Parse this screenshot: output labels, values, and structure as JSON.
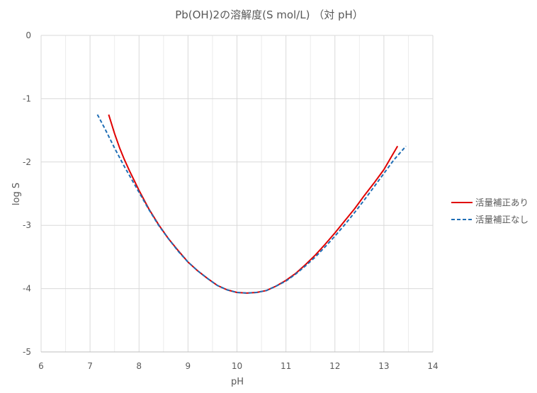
{
  "chart_data": {
    "type": "line",
    "title": "Pb(OH)2の溶解度(S mol/L) （対 pH）",
    "xlabel": "pH",
    "ylabel": "log S",
    "xlim": [
      6,
      14
    ],
    "ylim": [
      -5,
      0
    ],
    "xticks": [
      6,
      7,
      8,
      9,
      10,
      11,
      12,
      13,
      14
    ],
    "yticks": [
      0,
      -1,
      -2,
      -3,
      -4,
      -5
    ],
    "x_minor_step": 0.5,
    "grid": true,
    "legend": "right",
    "series": [
      {
        "name": "活量補正あり",
        "color": "#e00000",
        "dash": "solid",
        "x": [
          7.38,
          7.5,
          7.6,
          7.7,
          7.8,
          8.0,
          8.2,
          8.4,
          8.6,
          8.8,
          9.0,
          9.2,
          9.4,
          9.6,
          9.8,
          10.0,
          10.2,
          10.4,
          10.6,
          10.8,
          11.0,
          11.2,
          11.4,
          11.6,
          11.8,
          12.0,
          12.2,
          12.4,
          12.6,
          12.8,
          13.0,
          13.28
        ],
        "y": [
          -1.25,
          -1.55,
          -1.77,
          -1.96,
          -2.13,
          -2.45,
          -2.74,
          -2.99,
          -3.21,
          -3.4,
          -3.58,
          -3.72,
          -3.84,
          -3.95,
          -4.02,
          -4.06,
          -4.07,
          -4.06,
          -4.03,
          -3.96,
          -3.87,
          -3.76,
          -3.62,
          -3.47,
          -3.3,
          -3.12,
          -2.93,
          -2.74,
          -2.53,
          -2.33,
          -2.12,
          -1.75
        ]
      },
      {
        "name": "活量補正なし",
        "color": "#1f6eb5",
        "dash": "dashed",
        "x": [
          7.15,
          7.3,
          7.5,
          7.7,
          8.0,
          8.2,
          8.4,
          8.6,
          8.8,
          9.0,
          9.2,
          9.4,
          9.6,
          9.8,
          10.0,
          10.2,
          10.4,
          10.6,
          10.8,
          11.0,
          11.2,
          11.4,
          11.6,
          11.8,
          12.0,
          12.2,
          12.4,
          12.6,
          12.8,
          13.0,
          13.2,
          13.45
        ],
        "y": [
          -1.25,
          -1.47,
          -1.78,
          -2.07,
          -2.48,
          -2.75,
          -3.0,
          -3.21,
          -3.41,
          -3.58,
          -3.72,
          -3.84,
          -3.95,
          -4.02,
          -4.06,
          -4.07,
          -4.06,
          -4.03,
          -3.96,
          -3.88,
          -3.77,
          -3.64,
          -3.5,
          -3.34,
          -3.17,
          -2.99,
          -2.8,
          -2.6,
          -2.39,
          -2.18,
          -1.97,
          -1.75
        ]
      }
    ]
  }
}
